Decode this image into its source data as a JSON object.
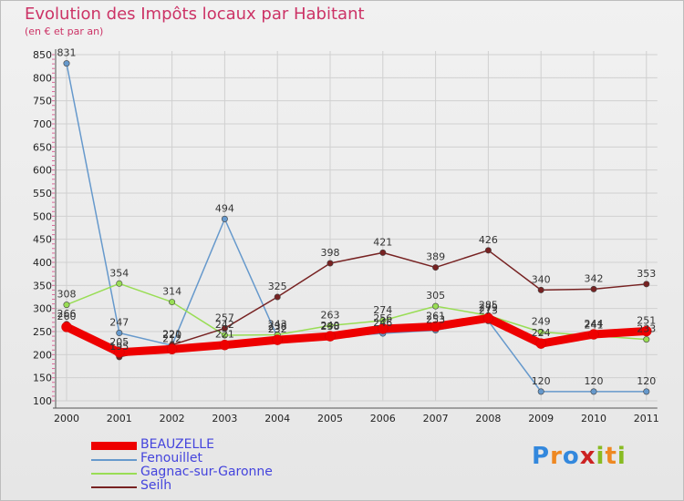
{
  "chart_data": {
    "type": "line",
    "title": "Evolution des Impôts locaux par Habitant",
    "subtitle": "(en € et par an)",
    "categories": [
      "2000",
      "2001",
      "2002",
      "2003",
      "2004",
      "2005",
      "2006",
      "2007",
      "2008",
      "2009",
      "2010",
      "2011"
    ],
    "ylim": [
      100,
      850
    ],
    "yticks": [
      100,
      150,
      200,
      250,
      300,
      350,
      400,
      450,
      500,
      550,
      600,
      650,
      700,
      750,
      800,
      850
    ],
    "series": [
      {
        "name": "BEAUZELLE",
        "color": "#ee0000",
        "values": [
          260,
          205,
          212,
          221,
          232,
          240,
          256,
          261,
          279,
          224,
          244,
          251
        ]
      },
      {
        "name": "Fenouillet",
        "color": "#6699cc",
        "values": [
          831,
          247,
          220,
          494,
          238,
          238,
          246,
          253,
          273,
          120,
          120,
          120
        ]
      },
      {
        "name": "Gagnac-sur-Garonne",
        "color": "#99dd55",
        "values": [
          308,
          354,
          314,
          242,
          243,
          263,
          274,
          305,
          285,
          249,
          241,
          233
        ]
      },
      {
        "name": "Seilh",
        "color": "#772222",
        "values": [
          266,
          195,
          221,
          257,
          325,
          398,
          421,
          389,
          426,
          340,
          342,
          353
        ]
      }
    ]
  },
  "brand": {
    "name": "Proxiti",
    "letters": [
      "P",
      "r",
      "o",
      "x",
      "i",
      "t",
      "i"
    ]
  }
}
